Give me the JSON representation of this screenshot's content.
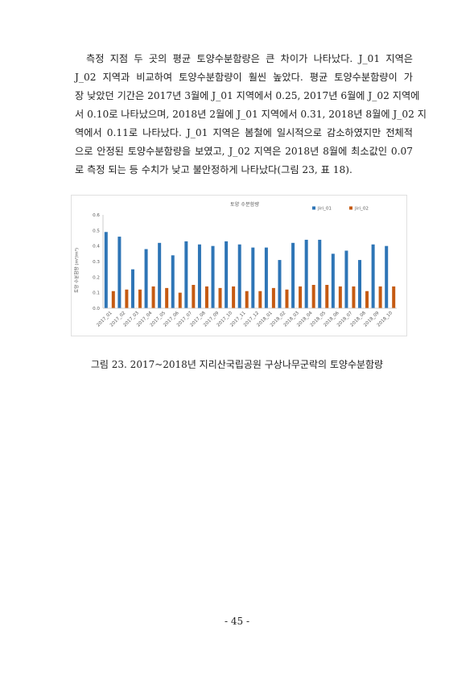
{
  "paragraph_lines": [
    "측정 지점 두 곳의 평균 토양수분함량은 큰 차이가 나타났다. J_01 지역은",
    "J_02 지역과 비교하여 토양수분함량이 훨씬 높았다. 평균 토양수분함량이 가",
    "장 낮았던 기간은 2017년 3월에 J_01 지역에서 0.25, 2017년 6월에 J_02 지역에",
    "서 0.10로 나타났으며, 2018년 2월에 J_01 지역에서 0.31, 2018년 8월에 J_02 지",
    "역에서 0.11로 나타났다. J_01 지역은 봄철에 일시적으로 감소하였지만 전체적",
    "으로 안정된 토양수분함량을 보였고, J_02 지역은 2018년 8월에 최소값인 0.07",
    "로 측정 되는 등 수치가 낮고 불안정하게 나타났다(그림 23, 표 18)."
  ],
  "figure_caption": "그림 23. 2017~2018년 지리산국립공원 구상나무군락의 토양수분함량",
  "page_number": "- 45 -",
  "chart_data": {
    "type": "bar",
    "title": "토양 수분함량",
    "ylabel": "토양 수분함량 (m³/m³)",
    "xlabel": "",
    "ylim": [
      0,
      0.6
    ],
    "yticks": [
      "0.0",
      "0.1",
      "0.2",
      "0.3",
      "0.4",
      "0.5",
      "0.6"
    ],
    "ytick_values": [
      0,
      0.1,
      0.2,
      0.3,
      0.4,
      0.5,
      0.6
    ],
    "grid": false,
    "legend_position": "top-right",
    "categories": [
      "2017_01",
      "2017_02",
      "2017_03",
      "2017_04",
      "2017_05",
      "2017_06",
      "2017_07",
      "2017_08",
      "2017_09",
      "2017_10",
      "2017_11",
      "2017_12",
      "2018_01",
      "2018_02",
      "2018_03",
      "2018_04",
      "2018_05",
      "2018_06",
      "2018_07",
      "2018_08",
      "2018_09",
      "2018_10"
    ],
    "series": [
      {
        "name": "Jiri_01",
        "color": "#2e75b6",
        "values": [
          0.49,
          0.46,
          0.25,
          0.38,
          0.42,
          0.34,
          0.43,
          0.41,
          0.4,
          0.43,
          0.41,
          0.39,
          0.39,
          0.31,
          0.42,
          0.44,
          0.44,
          0.35,
          0.37,
          0.31,
          0.41,
          0.4
        ]
      },
      {
        "name": "Jiri_02",
        "color": "#c55a11",
        "values": [
          0.11,
          0.12,
          0.12,
          0.14,
          0.13,
          0.1,
          0.15,
          0.14,
          0.13,
          0.14,
          0.11,
          0.11,
          0.13,
          0.12,
          0.14,
          0.15,
          0.15,
          0.14,
          0.14,
          0.11,
          0.14,
          0.14
        ]
      }
    ]
  }
}
